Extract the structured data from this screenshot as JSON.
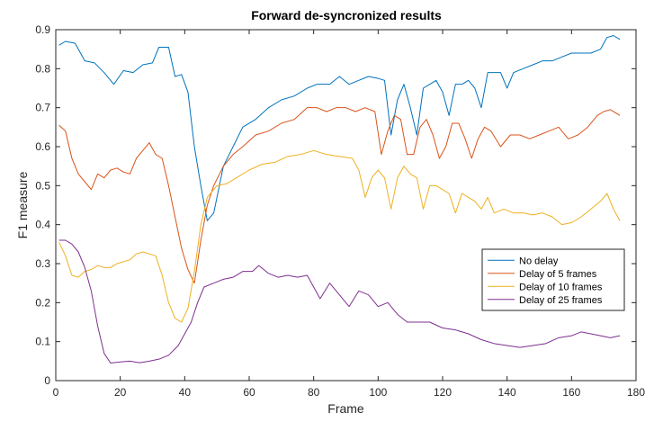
{
  "chart_data": {
    "type": "line",
    "title": "Forward de-syncronized results",
    "xlabel": "Frame",
    "ylabel": "F1 measure",
    "xlim": [
      0,
      180
    ],
    "ylim": [
      0,
      0.9
    ],
    "xticks": [
      0,
      20,
      40,
      60,
      80,
      100,
      120,
      140,
      160,
      180
    ],
    "yticks": [
      0,
      0.1,
      0.2,
      0.3,
      0.4,
      0.5,
      0.6,
      0.7,
      0.8,
      0.9
    ],
    "xtick_labels": [
      "0",
      "20",
      "40",
      "60",
      "80",
      "100",
      "120",
      "140",
      "160",
      "180"
    ],
    "ytick_labels": [
      "0",
      "0.1",
      "0.2",
      "0.3",
      "0.4",
      "0.5",
      "0.6",
      "0.7",
      "0.8",
      "0.9"
    ],
    "grid": false,
    "legend_position": "right",
    "series": [
      {
        "name": "No delay",
        "color": "#0072BD",
        "points": [
          [
            1,
            0.86
          ],
          [
            3,
            0.87
          ],
          [
            6,
            0.865
          ],
          [
            9,
            0.82
          ],
          [
            12,
            0.815
          ],
          [
            15,
            0.79
          ],
          [
            18,
            0.76
          ],
          [
            21,
            0.795
          ],
          [
            24,
            0.79
          ],
          [
            27,
            0.81
          ],
          [
            30,
            0.815
          ],
          [
            32,
            0.855
          ],
          [
            35,
            0.855
          ],
          [
            37,
            0.78
          ],
          [
            39,
            0.785
          ],
          [
            41,
            0.74
          ],
          [
            43,
            0.6
          ],
          [
            45,
            0.5
          ],
          [
            47,
            0.41
          ],
          [
            49,
            0.43
          ],
          [
            52,
            0.55
          ],
          [
            55,
            0.6
          ],
          [
            58,
            0.65
          ],
          [
            62,
            0.67
          ],
          [
            66,
            0.7
          ],
          [
            70,
            0.72
          ],
          [
            74,
            0.73
          ],
          [
            78,
            0.75
          ],
          [
            81,
            0.76
          ],
          [
            85,
            0.76
          ],
          [
            88,
            0.78
          ],
          [
            91,
            0.76
          ],
          [
            94,
            0.77
          ],
          [
            97,
            0.78
          ],
          [
            100,
            0.775
          ],
          [
            102,
            0.77
          ],
          [
            104,
            0.63
          ],
          [
            106,
            0.72
          ],
          [
            108,
            0.76
          ],
          [
            110,
            0.7
          ],
          [
            112,
            0.63
          ],
          [
            114,
            0.75
          ],
          [
            116,
            0.76
          ],
          [
            118,
            0.77
          ],
          [
            120,
            0.74
          ],
          [
            122,
            0.68
          ],
          [
            124,
            0.76
          ],
          [
            126,
            0.76
          ],
          [
            128,
            0.77
          ],
          [
            130,
            0.75
          ],
          [
            132,
            0.7
          ],
          [
            134,
            0.79
          ],
          [
            136,
            0.79
          ],
          [
            138,
            0.79
          ],
          [
            140,
            0.75
          ],
          [
            142,
            0.79
          ],
          [
            145,
            0.8
          ],
          [
            148,
            0.81
          ],
          [
            151,
            0.82
          ],
          [
            154,
            0.82
          ],
          [
            157,
            0.83
          ],
          [
            160,
            0.84
          ],
          [
            163,
            0.84
          ],
          [
            166,
            0.84
          ],
          [
            169,
            0.85
          ],
          [
            171,
            0.88
          ],
          [
            173,
            0.885
          ],
          [
            175,
            0.875
          ]
        ]
      },
      {
        "name": "Delay of 5 frames",
        "color": "#D95319",
        "points": [
          [
            1,
            0.655
          ],
          [
            3,
            0.64
          ],
          [
            5,
            0.57
          ],
          [
            7,
            0.53
          ],
          [
            9,
            0.51
          ],
          [
            11,
            0.49
          ],
          [
            13,
            0.53
          ],
          [
            15,
            0.52
          ],
          [
            17,
            0.54
          ],
          [
            19,
            0.545
          ],
          [
            21,
            0.535
          ],
          [
            23,
            0.53
          ],
          [
            25,
            0.57
          ],
          [
            27,
            0.59
          ],
          [
            29,
            0.61
          ],
          [
            31,
            0.58
          ],
          [
            33,
            0.57
          ],
          [
            35,
            0.5
          ],
          [
            37,
            0.42
          ],
          [
            39,
            0.34
          ],
          [
            41,
            0.285
          ],
          [
            43,
            0.25
          ],
          [
            45,
            0.36
          ],
          [
            47,
            0.45
          ],
          [
            49,
            0.5
          ],
          [
            52,
            0.55
          ],
          [
            55,
            0.58
          ],
          [
            58,
            0.6
          ],
          [
            62,
            0.63
          ],
          [
            66,
            0.64
          ],
          [
            70,
            0.66
          ],
          [
            74,
            0.67
          ],
          [
            78,
            0.7
          ],
          [
            81,
            0.7
          ],
          [
            84,
            0.69
          ],
          [
            87,
            0.7
          ],
          [
            90,
            0.7
          ],
          [
            93,
            0.69
          ],
          [
            96,
            0.7
          ],
          [
            99,
            0.69
          ],
          [
            101,
            0.58
          ],
          [
            103,
            0.64
          ],
          [
            105,
            0.68
          ],
          [
            107,
            0.67
          ],
          [
            109,
            0.58
          ],
          [
            111,
            0.58
          ],
          [
            113,
            0.65
          ],
          [
            115,
            0.67
          ],
          [
            117,
            0.63
          ],
          [
            119,
            0.57
          ],
          [
            121,
            0.6
          ],
          [
            123,
            0.66
          ],
          [
            125,
            0.66
          ],
          [
            127,
            0.62
          ],
          [
            129,
            0.57
          ],
          [
            131,
            0.62
          ],
          [
            133,
            0.65
          ],
          [
            135,
            0.64
          ],
          [
            138,
            0.6
          ],
          [
            141,
            0.63
          ],
          [
            144,
            0.63
          ],
          [
            147,
            0.62
          ],
          [
            150,
            0.63
          ],
          [
            153,
            0.64
          ],
          [
            156,
            0.65
          ],
          [
            159,
            0.62
          ],
          [
            162,
            0.63
          ],
          [
            165,
            0.65
          ],
          [
            168,
            0.68
          ],
          [
            170,
            0.69
          ],
          [
            172,
            0.695
          ],
          [
            175,
            0.68
          ]
        ]
      },
      {
        "name": "Delay of 10 frames",
        "color": "#EDB120",
        "points": [
          [
            1,
            0.355
          ],
          [
            3,
            0.32
          ],
          [
            5,
            0.27
          ],
          [
            7,
            0.265
          ],
          [
            9,
            0.28
          ],
          [
            11,
            0.285
          ],
          [
            13,
            0.295
          ],
          [
            15,
            0.29
          ],
          [
            17,
            0.29
          ],
          [
            19,
            0.3
          ],
          [
            21,
            0.305
          ],
          [
            23,
            0.31
          ],
          [
            25,
            0.325
          ],
          [
            27,
            0.33
          ],
          [
            29,
            0.325
          ],
          [
            31,
            0.32
          ],
          [
            33,
            0.27
          ],
          [
            35,
            0.2
          ],
          [
            37,
            0.16
          ],
          [
            39,
            0.15
          ],
          [
            41,
            0.185
          ],
          [
            43,
            0.28
          ],
          [
            45,
            0.4
          ],
          [
            47,
            0.47
          ],
          [
            50,
            0.5
          ],
          [
            53,
            0.505
          ],
          [
            56,
            0.52
          ],
          [
            60,
            0.54
          ],
          [
            64,
            0.555
          ],
          [
            68,
            0.56
          ],
          [
            72,
            0.575
          ],
          [
            76,
            0.58
          ],
          [
            80,
            0.59
          ],
          [
            84,
            0.58
          ],
          [
            88,
            0.575
          ],
          [
            92,
            0.57
          ],
          [
            94,
            0.54
          ],
          [
            96,
            0.47
          ],
          [
            98,
            0.52
          ],
          [
            100,
            0.54
          ],
          [
            102,
            0.52
          ],
          [
            104,
            0.44
          ],
          [
            106,
            0.52
          ],
          [
            108,
            0.55
          ],
          [
            110,
            0.53
          ],
          [
            112,
            0.52
          ],
          [
            114,
            0.44
          ],
          [
            116,
            0.5
          ],
          [
            118,
            0.5
          ],
          [
            120,
            0.49
          ],
          [
            122,
            0.48
          ],
          [
            124,
            0.43
          ],
          [
            126,
            0.48
          ],
          [
            128,
            0.47
          ],
          [
            130,
            0.46
          ],
          [
            132,
            0.44
          ],
          [
            134,
            0.47
          ],
          [
            136,
            0.43
          ],
          [
            139,
            0.44
          ],
          [
            142,
            0.43
          ],
          [
            145,
            0.43
          ],
          [
            148,
            0.425
          ],
          [
            151,
            0.43
          ],
          [
            154,
            0.42
          ],
          [
            157,
            0.4
          ],
          [
            160,
            0.405
          ],
          [
            163,
            0.42
          ],
          [
            166,
            0.44
          ],
          [
            169,
            0.46
          ],
          [
            171,
            0.48
          ],
          [
            173,
            0.44
          ],
          [
            175,
            0.41
          ]
        ]
      },
      {
        "name": "Delay of 25 frames",
        "color": "#7E2F8E",
        "points": [
          [
            1,
            0.36
          ],
          [
            3,
            0.36
          ],
          [
            5,
            0.35
          ],
          [
            7,
            0.33
          ],
          [
            9,
            0.29
          ],
          [
            11,
            0.23
          ],
          [
            13,
            0.14
          ],
          [
            15,
            0.07
          ],
          [
            17,
            0.045
          ],
          [
            20,
            0.048
          ],
          [
            23,
            0.05
          ],
          [
            26,
            0.046
          ],
          [
            29,
            0.05
          ],
          [
            32,
            0.055
          ],
          [
            35,
            0.065
          ],
          [
            38,
            0.09
          ],
          [
            40,
            0.12
          ],
          [
            42,
            0.15
          ],
          [
            44,
            0.2
          ],
          [
            46,
            0.24
          ],
          [
            49,
            0.25
          ],
          [
            52,
            0.26
          ],
          [
            55,
            0.265
          ],
          [
            58,
            0.28
          ],
          [
            61,
            0.28
          ],
          [
            63,
            0.295
          ],
          [
            66,
            0.275
          ],
          [
            69,
            0.265
          ],
          [
            72,
            0.27
          ],
          [
            75,
            0.265
          ],
          [
            78,
            0.27
          ],
          [
            80,
            0.24
          ],
          [
            82,
            0.21
          ],
          [
            85,
            0.25
          ],
          [
            88,
            0.22
          ],
          [
            91,
            0.19
          ],
          [
            94,
            0.23
          ],
          [
            97,
            0.22
          ],
          [
            100,
            0.19
          ],
          [
            103,
            0.2
          ],
          [
            106,
            0.17
          ],
          [
            109,
            0.15
          ],
          [
            112,
            0.15
          ],
          [
            116,
            0.15
          ],
          [
            120,
            0.135
          ],
          [
            124,
            0.13
          ],
          [
            128,
            0.12
          ],
          [
            132,
            0.105
          ],
          [
            136,
            0.095
          ],
          [
            140,
            0.09
          ],
          [
            144,
            0.085
          ],
          [
            148,
            0.09
          ],
          [
            152,
            0.095
          ],
          [
            156,
            0.11
          ],
          [
            160,
            0.115
          ],
          [
            163,
            0.125
          ],
          [
            166,
            0.12
          ],
          [
            169,
            0.115
          ],
          [
            172,
            0.11
          ],
          [
            175,
            0.115
          ]
        ]
      }
    ]
  }
}
